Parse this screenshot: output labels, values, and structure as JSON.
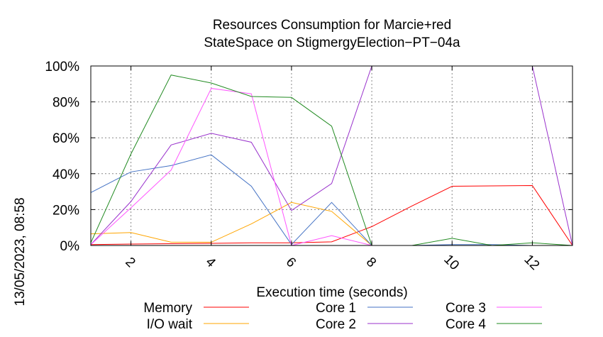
{
  "side_label": "13/05/2023, 08:58",
  "chart_data": {
    "type": "line",
    "title_lines": [
      "Resources Consumption for Marcie+red",
      "StateSpace on StigmergyElection−PT−04a"
    ],
    "xlabel": "Execution time (seconds)",
    "ylabel": "",
    "xlim": [
      1,
      13
    ],
    "ylim": [
      0,
      100
    ],
    "xticks": [
      2,
      4,
      6,
      8,
      10,
      12
    ],
    "yticks": [
      0,
      20,
      40,
      60,
      80,
      100
    ],
    "ytick_labels": [
      "0%",
      "20%",
      "40%",
      "60%",
      "80%",
      "100%"
    ],
    "grid": true,
    "legend_position": "bottom",
    "x": [
      1,
      2,
      3,
      4,
      5,
      6,
      7,
      8,
      9,
      10,
      11,
      12,
      13
    ],
    "series": [
      {
        "name": "Memory",
        "color": "#ff0000",
        "values": [
          0.5,
          0.8,
          1.0,
          1.2,
          1.5,
          1.5,
          2.0,
          10.5,
          22,
          33,
          33.2,
          33.4,
          0
        ]
      },
      {
        "name": "I/O wait",
        "color": "#ffa500",
        "values": [
          6.5,
          7.2,
          1.8,
          1.8,
          12,
          24,
          19,
          0,
          0,
          0,
          0,
          0,
          0
        ]
      },
      {
        "name": "Core 1",
        "color": "#4472c4",
        "values": [
          29.5,
          41,
          44.5,
          50.5,
          33,
          0.5,
          24,
          0,
          0,
          0.5,
          0.5,
          0,
          0
        ]
      },
      {
        "name": "Core 2",
        "color": "#9932cc",
        "values": [
          0.5,
          24.5,
          56,
          62.5,
          57.5,
          19.5,
          34.5,
          100,
          100,
          100,
          100,
          100,
          0
        ]
      },
      {
        "name": "Core 3",
        "color": "#ff55ff",
        "values": [
          0.5,
          21,
          42,
          87.5,
          84.5,
          0,
          5.5,
          0,
          0,
          0,
          0,
          0,
          0
        ]
      },
      {
        "name": "Core 4",
        "color": "#228b22",
        "values": [
          1.5,
          51,
          95,
          90.5,
          83,
          82.5,
          66.5,
          0,
          0,
          4,
          0,
          1.5,
          0
        ]
      }
    ]
  }
}
